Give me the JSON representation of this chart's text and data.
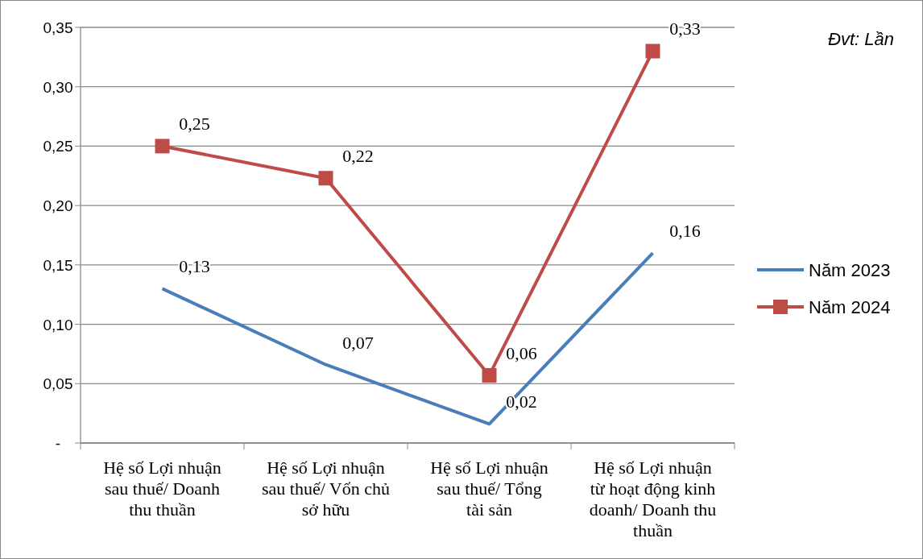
{
  "chart_data": {
    "type": "line",
    "categories": [
      "Hệ số Lợi nhuận sau thuế/ Doanh thu thuần",
      "Hệ số Lợi nhuận sau thuế/ Vốn chủ sở hữu",
      "Hệ số Lợi nhuận sau thuế/ Tổng tài sản",
      "Hệ số Lợi nhuận từ hoạt động kinh doanh/ Doanh thu thuần"
    ],
    "series": [
      {
        "name": "Năm 2023",
        "color": "#4a7ebb",
        "marker": "none",
        "values": [
          0.13,
          0.066,
          0.016,
          0.16
        ],
        "value_labels": [
          "0,13",
          "0,07",
          "0,02",
          "0,16"
        ]
      },
      {
        "name": "Năm 2024",
        "color": "#be4b48",
        "marker": "square",
        "values": [
          0.25,
          0.223,
          0.057,
          0.33
        ],
        "value_labels": [
          "0,25",
          "0,22",
          "0,06",
          "0,33"
        ]
      }
    ],
    "ylim": [
      0,
      0.35
    ],
    "yticks": [
      {
        "value": 0,
        "label": "-"
      },
      {
        "value": 0.05,
        "label": "0,05"
      },
      {
        "value": 0.1,
        "label": "0,10"
      },
      {
        "value": 0.15,
        "label": "0,15"
      },
      {
        "value": 0.2,
        "label": "0,20"
      },
      {
        "value": 0.25,
        "label": "0,25"
      },
      {
        "value": 0.3,
        "label": "0,30"
      },
      {
        "value": 0.35,
        "label": "0,35"
      }
    ],
    "grid": "y",
    "legend": "right",
    "line_style": "solid",
    "annotations": [
      "Đvt: Lần"
    ]
  }
}
